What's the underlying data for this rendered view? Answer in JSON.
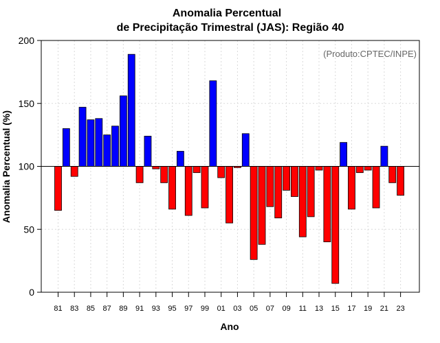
{
  "chart_data": {
    "type": "bar",
    "title_line1": "Anomalia Percentual",
    "title_line2": "de Precipitação Trimestral (JAS): Região 40",
    "xlabel": "Ano",
    "ylabel": "Anomalia Percentual (%)",
    "credit": "(Produto:CPTEC/INPE)",
    "baseline": 100,
    "ylim": [
      0,
      200
    ],
    "yticks": [
      "0",
      "50",
      "100",
      "150",
      "200"
    ],
    "grid": true,
    "colors": {
      "above": "#0000ff",
      "below": "#ff0000",
      "grid": "#d9d9d9"
    },
    "years": [
      1981,
      1982,
      1983,
      1984,
      1985,
      1986,
      1987,
      1988,
      1989,
      1990,
      1991,
      1992,
      1993,
      1994,
      1995,
      1996,
      1997,
      1998,
      1999,
      2000,
      2001,
      2002,
      2003,
      2004,
      2005,
      2006,
      2007,
      2008,
      2009,
      2010,
      2011,
      2012,
      2013,
      2014,
      2015,
      2016,
      2017,
      2018,
      2019,
      2020,
      2021,
      2022,
      2023
    ],
    "xtick_labels": [
      "81",
      "83",
      "85",
      "87",
      "89",
      "91",
      "93",
      "95",
      "97",
      "99",
      "01",
      "03",
      "05",
      "07",
      "09",
      "11",
      "13",
      "15",
      "17",
      "19",
      "21",
      "23"
    ],
    "values": [
      65,
      130,
      92,
      147,
      137,
      138,
      125,
      132,
      156,
      189,
      87,
      124,
      98,
      87,
      66,
      112,
      61,
      95,
      67,
      168,
      91,
      55,
      99,
      126,
      26,
      38,
      68,
      59,
      81,
      76,
      44,
      60,
      97,
      40,
      7,
      119,
      66,
      95,
      97,
      67,
      116,
      87,
      77
    ]
  }
}
